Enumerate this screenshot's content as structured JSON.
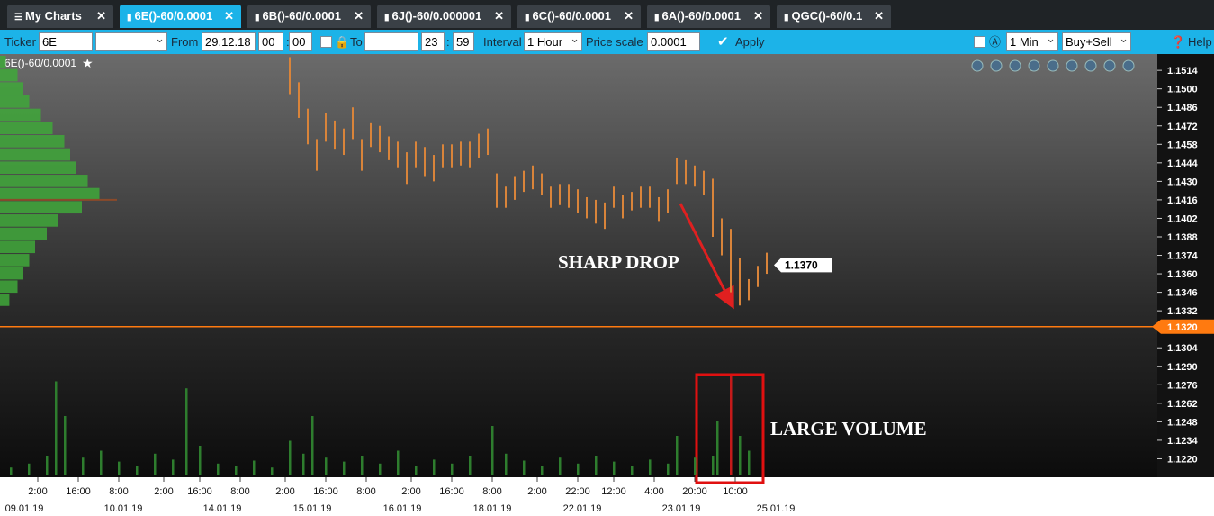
{
  "tabs": [
    "My Charts",
    "6E()-60/0.0001",
    "6B()-60/0.0001",
    "6J()-60/0.000001",
    "6C()-60/0.0001",
    "6A()-60/0.0001",
    "QGC()-60/0.1"
  ],
  "toolbar": {
    "ticker_label": "Ticker",
    "ticker": "6E",
    "from_label": "From",
    "from_date": "29.12.18",
    "from_hour": "00",
    "from_minute": "00",
    "to_label": "To",
    "to_hour": "23",
    "to_minute": "59",
    "interval_label": "Interval",
    "interval": "1 Hour",
    "price_scale_label": "Price scale",
    "price_scale": "0.0001",
    "apply": "Apply",
    "timeframe": "1 Min",
    "side": "Buy+Sell",
    "help": "Help"
  },
  "chart_data": {
    "type": "ohlc",
    "title": "6E()-60/0.0001",
    "ylim": [
      1.1206,
      1.1525
    ],
    "yticks": [
      1.1514,
      {
        "value": 1.15,
        "label": "1.1500"
      },
      1.1486,
      1.1472,
      1.1458,
      1.1444,
      {
        "value": 1.143,
        "label": "1.1430"
      },
      1.1416,
      1.1402,
      1.1388,
      1.1374,
      {
        "value": 1.136,
        "label": "1.1360"
      },
      1.1346,
      1.1332,
      1.1304,
      {
        "value": 1.129,
        "label": "1.1290"
      },
      1.1276,
      1.1262,
      1.1248,
      1.1234,
      {
        "value": 1.122,
        "label": "1.1220"
      }
    ],
    "xlim": [
      -0.4,
      256.8
    ],
    "xticks": [
      {
        "value": 8,
        "label": "2:00"
      },
      {
        "value": 17,
        "label": "16:00"
      },
      {
        "value": 26,
        "label": "8:00"
      },
      {
        "value": 36,
        "label": "2:00"
      },
      {
        "value": 44,
        "label": "16:00"
      },
      {
        "value": 53,
        "label": "8:00"
      },
      {
        "value": 63,
        "label": "2:00"
      },
      {
        "value": 72,
        "label": "16:00"
      },
      {
        "value": 81,
        "label": "8:00"
      },
      {
        "value": 91,
        "label": "2:00"
      },
      {
        "value": 100,
        "label": "16:00"
      },
      {
        "value": 109,
        "label": "8:00"
      },
      {
        "value": 119,
        "label": "2:00"
      },
      {
        "value": 128,
        "label": "22:00"
      },
      {
        "value": 136,
        "label": "12:00"
      },
      {
        "value": 145,
        "label": "4:00"
      },
      {
        "value": 154,
        "label": "20:00"
      },
      {
        "value": 163,
        "label": "10:00"
      }
    ],
    "date_ticks": [
      {
        "value": 5,
        "label": "09.01.19"
      },
      {
        "value": 27,
        "label": "10.01.19"
      },
      {
        "value": 49,
        "label": "14.01.19"
      },
      {
        "value": 69,
        "label": "15.01.19"
      },
      {
        "value": 89,
        "label": "16.01.19"
      },
      {
        "value": 109,
        "label": "18.01.19"
      },
      {
        "value": 129,
        "label": "22.01.19"
      },
      {
        "value": 151,
        "label": "23.01.19"
      },
      {
        "value": 172,
        "label": "25.01.19"
      }
    ],
    "color": "#d9843a",
    "x": [
      64,
      66,
      68,
      70,
      72,
      74,
      76,
      78,
      80,
      82,
      84,
      86,
      88,
      90,
      92,
      94,
      96,
      98,
      100,
      102,
      104,
      106,
      108,
      110,
      112,
      114,
      116,
      118,
      120,
      122,
      124,
      126,
      128,
      130,
      132,
      134,
      136,
      138,
      140,
      142,
      144,
      146,
      148,
      150,
      152,
      154,
      156,
      158,
      160,
      162,
      164,
      166,
      168,
      170
    ],
    "high": [
      1.1524,
      1.1505,
      1.1485,
      1.1462,
      1.1482,
      1.1476,
      1.147,
      1.1486,
      1.1462,
      1.1474,
      1.1472,
      1.1464,
      1.146,
      1.1452,
      1.146,
      1.1456,
      1.145,
      1.1458,
      1.1458,
      1.146,
      1.146,
      1.1466,
      1.147,
      1.1436,
      1.1426,
      1.1434,
      1.1438,
      1.1442,
      1.1436,
      1.1426,
      1.1428,
      1.1428,
      1.1424,
      1.1418,
      1.1416,
      1.1414,
      1.1426,
      1.142,
      1.1422,
      1.1426,
      1.1426,
      1.1418,
      1.1424,
      1.1448,
      1.1446,
      1.1442,
      1.1438,
      1.1432,
      1.1402,
      1.1394,
      1.1372,
      1.1356,
      1.1366,
      1.1376
    ],
    "low": [
      1.1496,
      1.1478,
      1.1458,
      1.1438,
      1.146,
      1.1454,
      1.145,
      1.1462,
      1.1438,
      1.1456,
      1.1452,
      1.1446,
      1.144,
      1.1428,
      1.144,
      1.1434,
      1.143,
      1.144,
      1.144,
      1.1442,
      1.144,
      1.1448,
      1.145,
      1.141,
      1.141,
      1.1416,
      1.1422,
      1.1424,
      1.142,
      1.141,
      1.1412,
      1.141,
      1.1406,
      1.1402,
      1.1398,
      1.1394,
      1.141,
      1.1402,
      1.1408,
      1.141,
      1.141,
      1.14,
      1.1406,
      1.1428,
      1.1428,
      1.1426,
      1.142,
      1.1388,
      1.1374,
      1.1346,
      1.1336,
      1.134,
      1.135,
      1.136
    ],
    "volume": {
      "color": "#2e7d2e",
      "vlim": [
        0,
        100
      ],
      "x": [
        2,
        6,
        10,
        12,
        14,
        18,
        22,
        26,
        30,
        34,
        38,
        41,
        44,
        48,
        52,
        56,
        60,
        64,
        67,
        69,
        72,
        76,
        80,
        84,
        88,
        92,
        96,
        100,
        104,
        109,
        112,
        116,
        120,
        124,
        128,
        132,
        136,
        140,
        144,
        148,
        150,
        154,
        158,
        159,
        162,
        164,
        166
      ],
      "values": [
        8,
        12,
        20,
        95,
        60,
        18,
        25,
        14,
        10,
        22,
        16,
        88,
        30,
        12,
        10,
        15,
        8,
        35,
        22,
        60,
        18,
        14,
        20,
        12,
        25,
        10,
        16,
        12,
        20,
        50,
        22,
        15,
        10,
        18,
        12,
        20,
        14,
        10,
        16,
        12,
        40,
        18,
        20,
        55,
        100,
        40,
        25
      ]
    },
    "volume_highlight": {
      "x": 162,
      "color": "#c41a1a"
    },
    "profile": {
      "color": "#3fa83a",
      "lim": [
        0,
        100
      ],
      "levels": [
        1.152,
        1.151,
        1.15,
        1.149,
        1.148,
        1.147,
        1.146,
        1.145,
        1.144,
        1.143,
        1.142,
        1.141,
        1.14,
        1.139,
        1.138,
        1.137,
        1.136,
        1.135,
        1.134
      ],
      "values": [
        5,
        15,
        20,
        25,
        35,
        45,
        55,
        60,
        65,
        75,
        85,
        70,
        50,
        40,
        30,
        25,
        20,
        15,
        8
      ]
    },
    "poc": 1.1416,
    "current_price": {
      "value": 1.137,
      "label": "1.1370"
    },
    "last_line": {
      "value": 1.132,
      "label": "1.1320"
    },
    "annotations": [
      "SHARP DROP",
      "LARGE VOLUME"
    ]
  }
}
